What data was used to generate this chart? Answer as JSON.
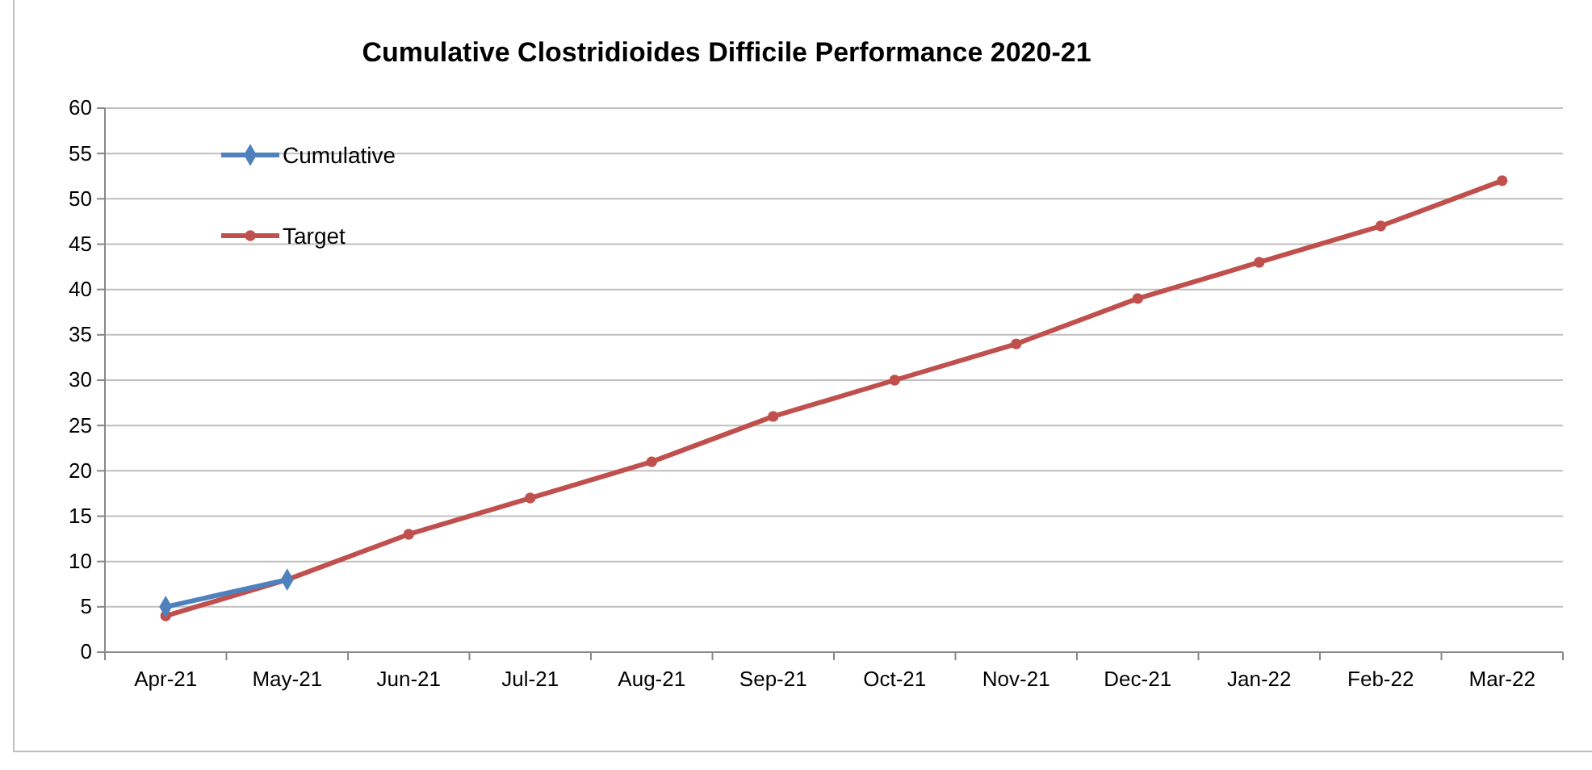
{
  "chart_data": {
    "type": "line",
    "title": "Cumulative Clostridioides Difficile Performance 2020-21",
    "categories": [
      "Apr-21",
      "May-21",
      "Jun-21",
      "Jul-21",
      "Aug-21",
      "Sep-21",
      "Oct-21",
      "Nov-21",
      "Dec-21",
      "Jan-22",
      "Feb-22",
      "Mar-22"
    ],
    "series": [
      {
        "name": "Cumulative",
        "color": "#4f81bd",
        "marker": "diamond",
        "values": [
          5,
          8,
          null,
          null,
          null,
          null,
          null,
          null,
          null,
          null,
          null,
          null
        ]
      },
      {
        "name": "Target",
        "color": "#c0504d",
        "marker": "circle",
        "values": [
          4,
          8,
          13,
          17,
          21,
          26,
          30,
          34,
          39,
          43,
          47,
          52
        ]
      }
    ],
    "ylim": [
      0,
      60
    ],
    "yticks": [
      0,
      5,
      10,
      15,
      20,
      25,
      30,
      35,
      40,
      45,
      50,
      55,
      60
    ],
    "grid": "y",
    "legend": "top left",
    "line_style": "solid"
  }
}
